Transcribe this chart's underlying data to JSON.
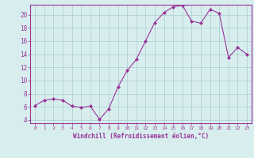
{
  "hours": [
    0,
    1,
    2,
    3,
    4,
    5,
    6,
    7,
    8,
    9,
    10,
    11,
    12,
    13,
    14,
    15,
    16,
    17,
    18,
    19,
    20,
    21,
    22,
    23
  ],
  "windchill": [
    6.2,
    7.0,
    7.2,
    7.0,
    6.1,
    5.9,
    6.1,
    4.1,
    5.7,
    9.0,
    11.5,
    13.2,
    16.0,
    18.8,
    20.3,
    21.2,
    21.4,
    19.0,
    18.7,
    20.8,
    20.2,
    13.5,
    15.0,
    14.0
  ],
  "line_color": "#993399",
  "marker_color": "#993399",
  "bg_color": "#d8eeee",
  "grid_color": "#aacccc",
  "xlabel": "Windchill (Refroidissement éolien,°C)",
  "ylim": [
    3.5,
    21.5
  ],
  "yticks": [
    4,
    6,
    8,
    10,
    12,
    14,
    16,
    18,
    20
  ],
  "yticklabels": [
    "4",
    "6",
    "8",
    "10",
    "12",
    "14",
    "16",
    "18",
    "20"
  ],
  "xticks": [
    0,
    1,
    2,
    3,
    4,
    5,
    6,
    7,
    8,
    9,
    10,
    11,
    12,
    13,
    14,
    15,
    16,
    17,
    18,
    19,
    20,
    21,
    22,
    23
  ],
  "xlim": [
    -0.5,
    23.5
  ]
}
